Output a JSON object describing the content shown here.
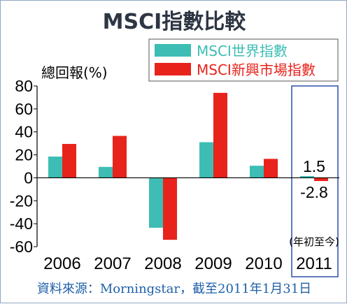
{
  "chart_data": {
    "type": "bar",
    "title": "MSCI指數比較",
    "ylabel": "總回報(%)",
    "categories": [
      "2006",
      "2007",
      "2008",
      "2009",
      "2010",
      "2011"
    ],
    "category_note": "(年初至今)",
    "ylim": [
      -60,
      80
    ],
    "yticks": [
      "80",
      "60",
      "40",
      "20",
      "0",
      "-20",
      "-40",
      "-60"
    ],
    "ytick_values": [
      80,
      60,
      40,
      20,
      0,
      -20,
      -40,
      -60
    ],
    "series": [
      {
        "name": "MSCI世界指數",
        "color": "#3dbdb3",
        "values": [
          18.5,
          9.5,
          -43.5,
          31,
          10.5,
          1.5
        ]
      },
      {
        "name": "MSCI新興市場指數",
        "color": "#e8231b",
        "values": [
          29.5,
          36.5,
          -54,
          74,
          16.5,
          -2.8
        ]
      }
    ],
    "annotations": [
      {
        "text": "1.5",
        "series": 0,
        "category": "2011",
        "color": "#3dbdb3"
      },
      {
        "text": "-2.8",
        "series": 1,
        "category": "2011",
        "color": "#e8231b"
      }
    ],
    "highlight_category": "2011",
    "highlight_color": "#2b4fa8",
    "legend_position": "top-right",
    "grid": false,
    "source": "資料來源：Morningstar，截至2011年1月31日"
  }
}
